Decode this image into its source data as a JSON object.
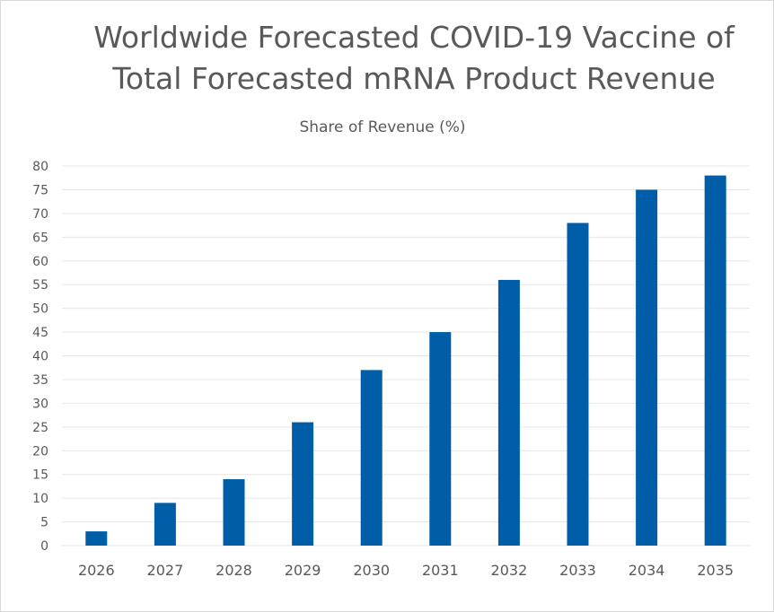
{
  "chart_data": {
    "type": "bar",
    "title_line1": "Worldwide Forecasted COVID-19 Vaccine of",
    "title_line2": "Total Forecasted mRNA Product Revenue",
    "subtitle": "Share of Revenue (%)",
    "xlabel": "",
    "ylabel": "Share of Revenue (%)",
    "categories": [
      "2026",
      "2027",
      "2028",
      "2029",
      "2030",
      "2031",
      "2032",
      "2033",
      "2034",
      "2035"
    ],
    "values": [
      3,
      9,
      14,
      26,
      37,
      45,
      56,
      68,
      75,
      78
    ],
    "ylim": [
      0,
      80
    ],
    "yticks": [
      0,
      5,
      10,
      15,
      20,
      25,
      30,
      35,
      40,
      45,
      50,
      55,
      60,
      65,
      70,
      75,
      80
    ],
    "grid": true,
    "bar_color": "#005ea8",
    "grid_color": "#e6e6e6"
  }
}
